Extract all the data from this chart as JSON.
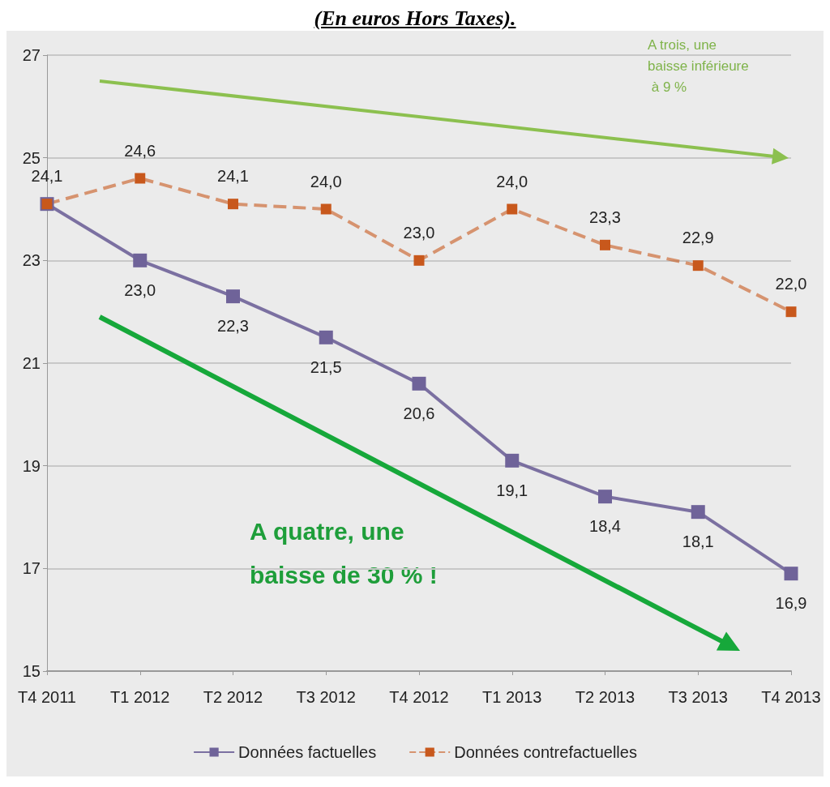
{
  "chart_data": {
    "type": "line",
    "title": "(En euros Hors Taxes).",
    "categories": [
      "T4 2011",
      "T1 2012",
      "T2 2012",
      "T3 2012",
      "T4 2012",
      "T1 2013",
      "T2 2013",
      "T3 2013",
      "T4 2013"
    ],
    "series": [
      {
        "name": "Données factuelles",
        "color": "#6f6399",
        "values": [
          24.1,
          23.0,
          22.3,
          21.5,
          20.6,
          19.1,
          18.4,
          18.1,
          16.9
        ],
        "value_labels": [
          null,
          "23,0",
          "22,3",
          "21,5",
          "20,6",
          "19,1",
          "18,4",
          "18,1",
          "16,9"
        ],
        "line_style": "solid"
      },
      {
        "name": "Données contrefactuelles",
        "color": "#c8581c",
        "values": [
          24.1,
          24.6,
          24.1,
          24.0,
          23.0,
          24.0,
          23.3,
          22.9,
          22.0
        ],
        "value_labels": [
          "24,1",
          "24,6",
          "24,1",
          "24,0",
          "23,0",
          "24,0",
          "23,3",
          "22,9",
          "22,0"
        ],
        "line_style": "dashed"
      }
    ],
    "ylim": [
      15,
      27
    ],
    "yticks": [
      15,
      17,
      19,
      21,
      23,
      25,
      27
    ],
    "grid": "y",
    "legend": "bottom",
    "marker": "square",
    "annotations": [
      "A trois, une baisse inférieure à 9 %",
      "A quatre, une baisse de 30 % !"
    ]
  }
}
